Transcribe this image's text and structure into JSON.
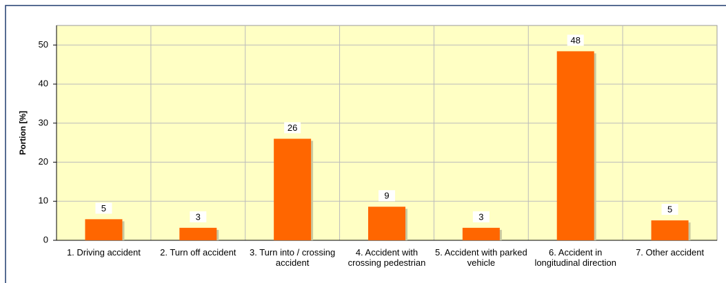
{
  "chart_data": {
    "type": "bar",
    "y_label": "Portion [%]",
    "categories": [
      "1. Driving accident",
      "2. Turn off accident",
      "3. Turn into / crossing accident",
      "4. Accident with crossing pedestrian",
      "5. Accident with parked vehicle",
      "6. Accident in longitudinal direction",
      "7. Other accident"
    ],
    "values": [
      5.4,
      3.2,
      26,
      8.6,
      3.2,
      48.4,
      5.1
    ],
    "value_labels": [
      "5",
      "3",
      "26",
      "9",
      "3",
      "48",
      "5"
    ],
    "color": "#ff6600",
    "ylim": [
      0,
      55
    ],
    "yticks": [
      0,
      10,
      20,
      30,
      40,
      50
    ],
    "grid": true
  }
}
